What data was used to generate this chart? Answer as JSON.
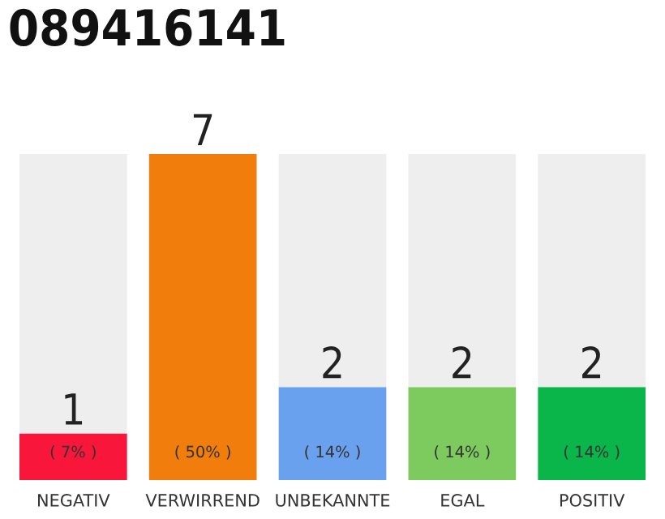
{
  "chart_data": {
    "type": "bar",
    "title": "089416141",
    "categories": [
      "NEGATIV",
      "VERWIRREND",
      "UNBEKANNTE",
      "EGAL",
      "POSITIV"
    ],
    "stacked": true,
    "series": [
      {
        "colors": [
          "#f8173a",
          "#f07d0c",
          "#6aa1ee",
          "#7dcb5f",
          "#0ab54a"
        ],
        "values": [
          1,
          7,
          2,
          2,
          2
        ],
        "data_labels": true
      },
      {
        "color": "#eeeeee",
        "values": [
          6,
          0,
          5,
          5,
          5
        ]
      }
    ],
    "annotations": [
      {
        "text": "( 7% )",
        "x": "NEGATIV",
        "y": 0
      },
      {
        "text": "( 50% )",
        "x": "VERWIRREND",
        "y": 0
      },
      {
        "text": "( 14% )",
        "x": "UNBEKANNTE",
        "y": 0
      },
      {
        "text": "( 14% )",
        "x": "EGAL",
        "y": 0
      },
      {
        "text": "( 14% )",
        "x": "POSITIV",
        "y": 0
      }
    ],
    "grid": false,
    "legend": false
  }
}
